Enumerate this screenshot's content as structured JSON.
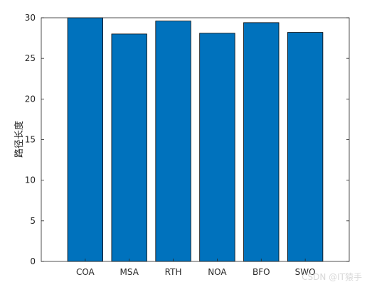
{
  "chart_data": {
    "type": "bar",
    "categories": [
      "COA",
      "MSA",
      "RTH",
      "NOA",
      "BFO",
      "SWO"
    ],
    "values": [
      30.0,
      28.0,
      29.6,
      28.1,
      29.4,
      28.2
    ],
    "ylabel": "路径长度",
    "xlabel": "",
    "ylim": [
      0,
      30
    ],
    "yticks": [
      0,
      5,
      10,
      15,
      20,
      25,
      30
    ],
    "grid": false,
    "colors": {
      "bar": "#0072BD",
      "axis": "#262626"
    }
  },
  "watermark": "CSDN @IT猿手"
}
